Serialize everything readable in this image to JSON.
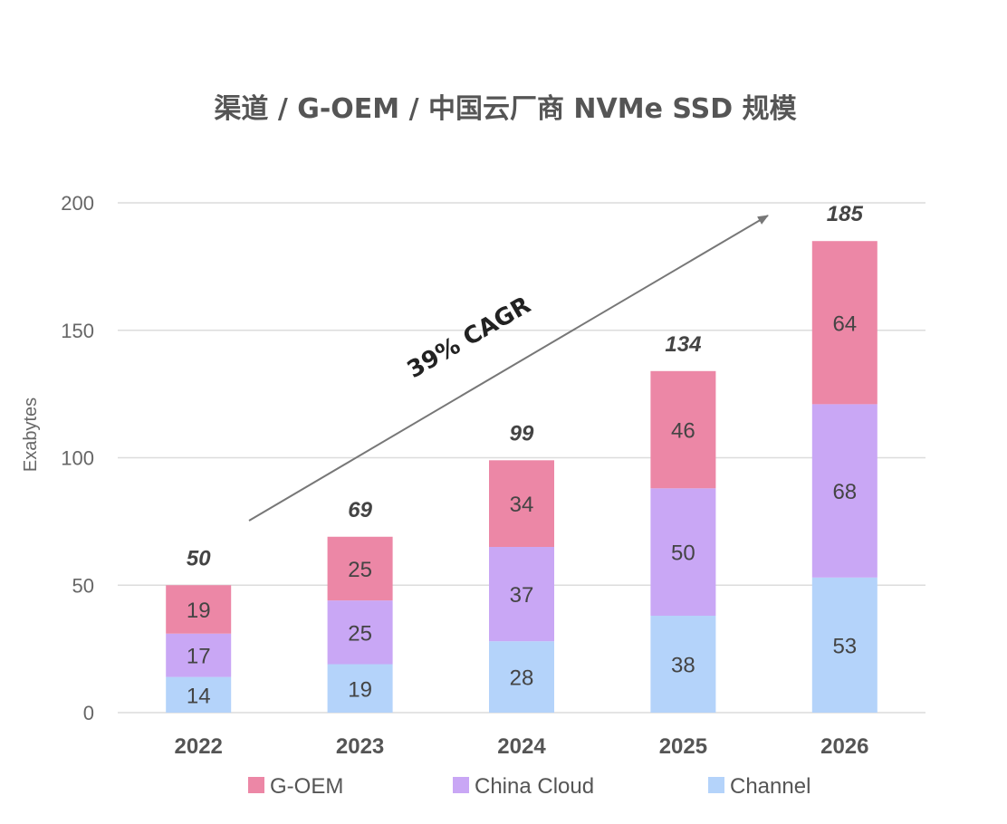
{
  "chart_data": {
    "type": "bar",
    "stacked": true,
    "title": "渠道 / G-OEM / 中国云厂商 NVMe SSD 规模",
    "xlabel": "",
    "ylabel": "Exabytes",
    "ylim": [
      0,
      200
    ],
    "yticks": [
      0,
      50,
      100,
      150,
      200
    ],
    "grid": true,
    "categories": [
      "2022",
      "2023",
      "2024",
      "2025",
      "2026"
    ],
    "series": [
      {
        "name": "Channel",
        "color": "#b4d3fa",
        "values": [
          14,
          19,
          28,
          38,
          53
        ]
      },
      {
        "name": "China Cloud",
        "color": "#c9a7f5",
        "values": [
          17,
          25,
          37,
          50,
          68
        ]
      },
      {
        "name": "G-OEM",
        "color": "#ec87a6",
        "values": [
          19,
          25,
          34,
          46,
          64
        ]
      }
    ],
    "totals": [
      "50",
      "69",
      "99",
      "134",
      "185"
    ],
    "annotation": "39% CAGR",
    "legend": [
      "G-OEM",
      "China Cloud",
      "Channel"
    ],
    "legend_position": "bottom"
  }
}
